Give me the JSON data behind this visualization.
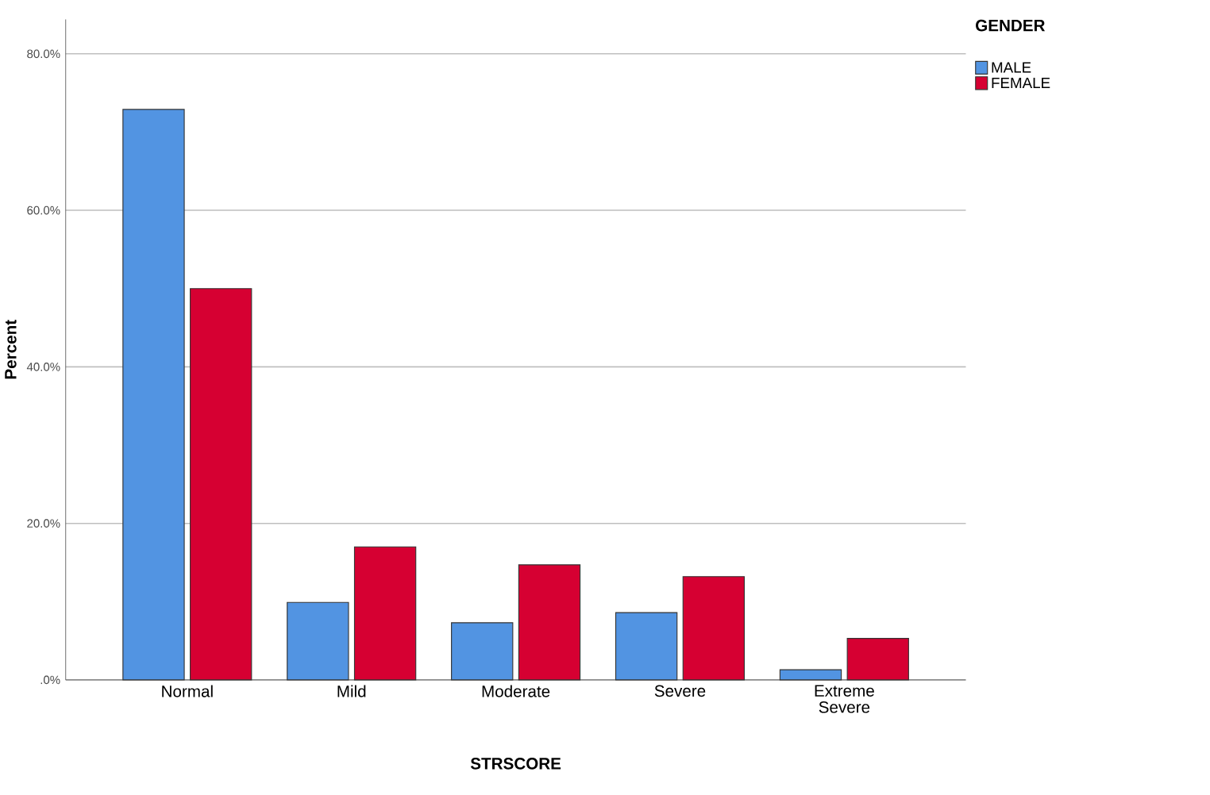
{
  "chart_data": {
    "type": "bar",
    "xlabel": "STRSCORE",
    "ylabel": "Percent",
    "legend_title": "GENDER",
    "categories": [
      "Normal",
      "Mild",
      "Moderate",
      "Severe",
      "Extreme Severe"
    ],
    "series": [
      {
        "name": "MALE",
        "color": "#5294e2",
        "values": [
          72.9,
          9.9,
          7.3,
          8.6,
          1.3
        ]
      },
      {
        "name": "FEMALE",
        "color": "#d60032",
        "values": [
          50.0,
          17.0,
          14.7,
          13.2,
          5.3
        ]
      }
    ],
    "ylim": [
      0,
      84.4
    ],
    "yticks": [
      {
        "value": 0,
        "label": ".0%"
      },
      {
        "value": 20,
        "label": "20.0%"
      },
      {
        "value": 40,
        "label": "40.0%"
      },
      {
        "value": 60,
        "label": "60.0%"
      },
      {
        "value": 80,
        "label": "80.0%"
      }
    ],
    "grid": "y",
    "legend": "top right"
  }
}
